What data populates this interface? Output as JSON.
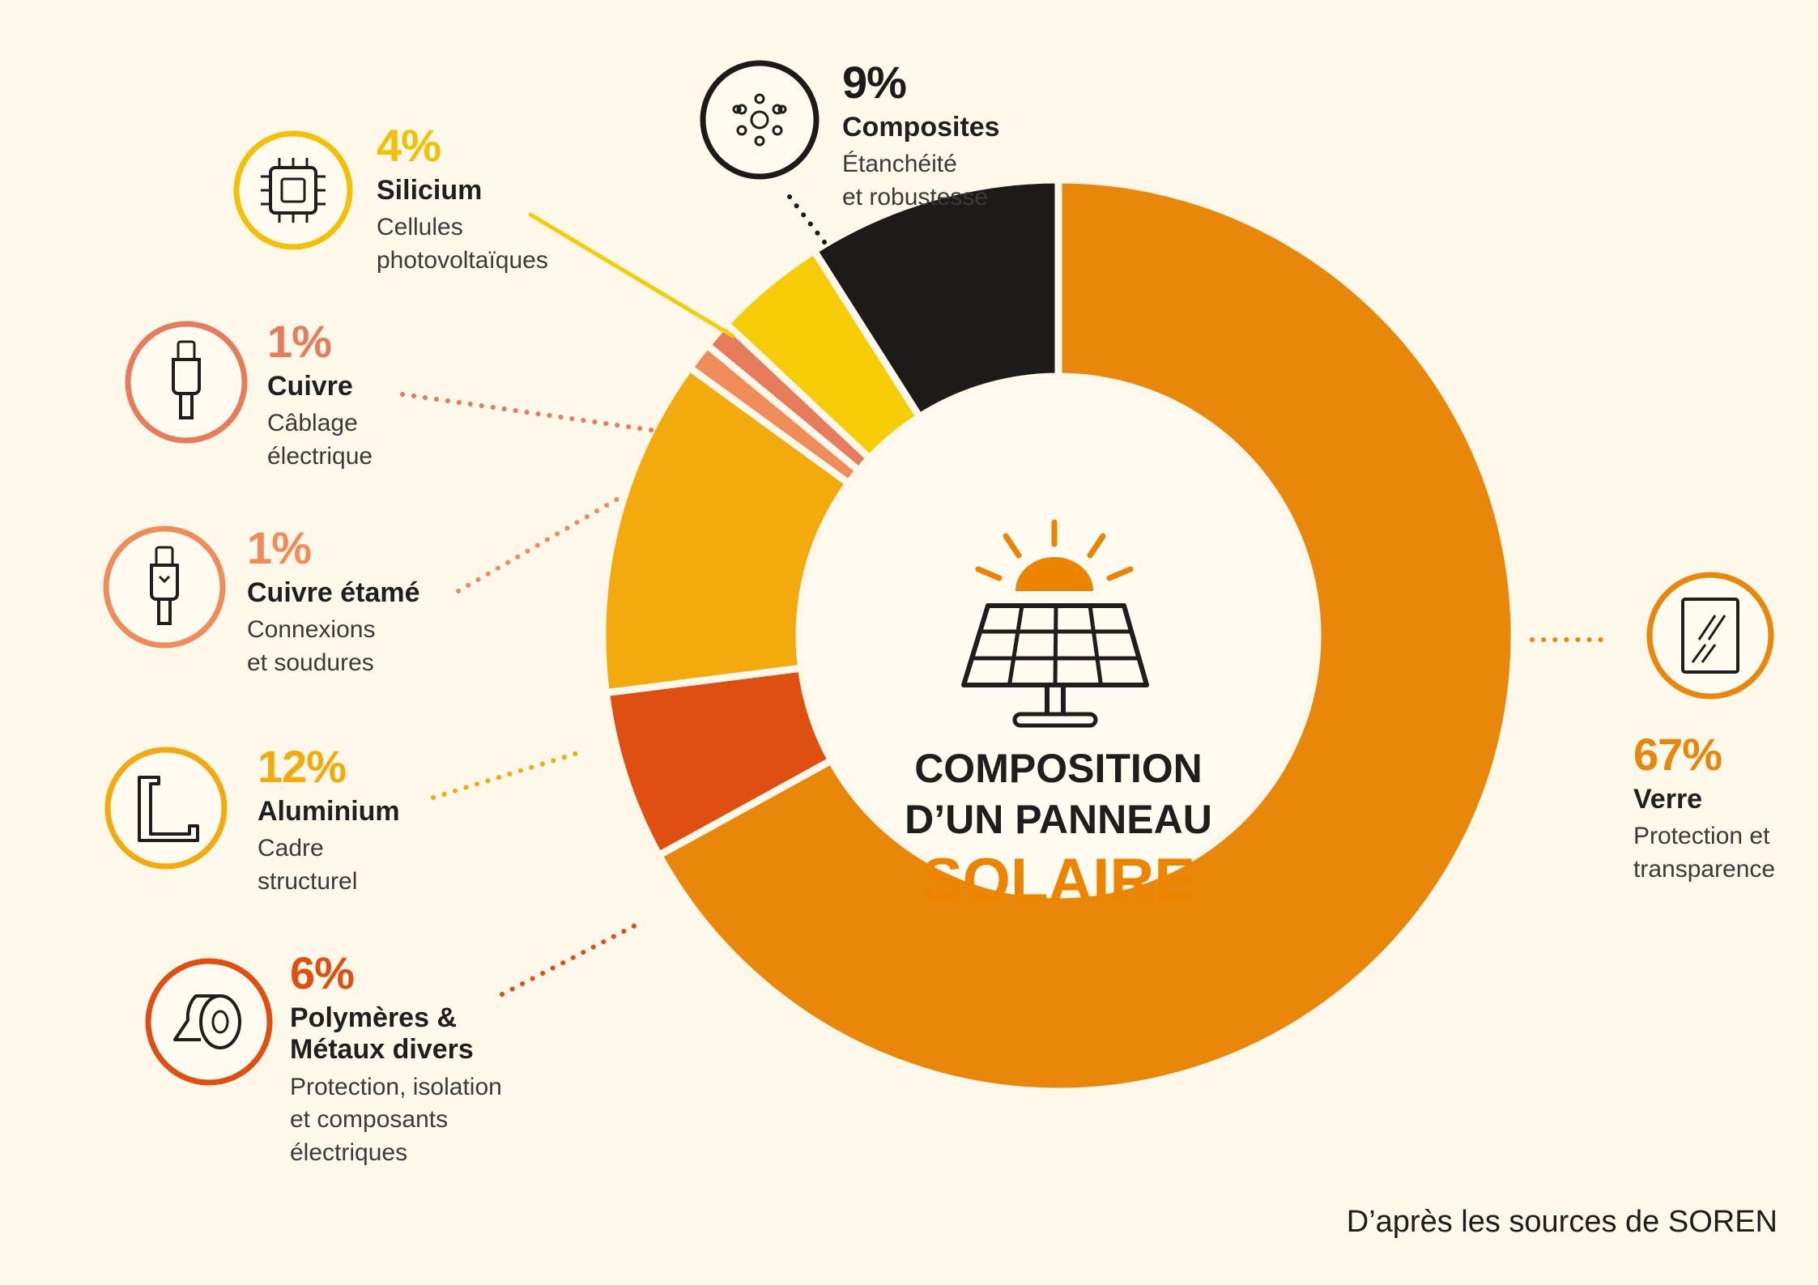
{
  "title": {
    "line1": "COMPOSITION",
    "line2": "D’UN PANNEAU",
    "accent": "SOLAIRE"
  },
  "source_note": "D’après les sources de SOREN",
  "chart_data": {
    "type": "pie",
    "donut": true,
    "categories": [
      "Verre",
      "Polymères & Métaux divers",
      "Aluminium",
      "Cuivre étamé",
      "Cuivre",
      "Silicium",
      "Composites"
    ],
    "values": [
      67,
      6,
      12,
      1,
      1,
      4,
      9
    ],
    "colors": [
      "#e9870a",
      "#e04f12",
      "#f2aa0d",
      "#f08c5a",
      "#e67c5b",
      "#f5cc05",
      "#1d1b19"
    ],
    "legend": "callouts"
  },
  "items": [
    {
      "key": "verre",
      "pct": "67%",
      "name": "Verre",
      "desc": [
        "Protection et",
        "transparence"
      ],
      "icon": "glass-pane-icon",
      "color": "#e9870a"
    },
    {
      "key": "polymeres",
      "pct": "6%",
      "name": [
        "Polymères &",
        "Métaux divers"
      ],
      "desc": [
        "Protection, isolation",
        "et composants",
        "électriques"
      ],
      "icon": "tape-roll-icon",
      "color": "#e04f12"
    },
    {
      "key": "aluminium",
      "pct": "12%",
      "name": "Aluminium",
      "desc": [
        "Cadre",
        "structurel"
      ],
      "icon": "frame-profile-icon",
      "color": "#f2aa0d"
    },
    {
      "key": "cuivre-etame",
      "pct": "1%",
      "name": "Cuivre étamé",
      "desc": [
        "Connexions",
        "et soudures"
      ],
      "icon": "tinned-cable-icon",
      "color": "#f08c5a"
    },
    {
      "key": "cuivre",
      "pct": "1%",
      "name": "Cuivre",
      "desc": [
        "Câblage",
        "électrique"
      ],
      "icon": "cable-icon",
      "color": "#e67c5b"
    },
    {
      "key": "silicium",
      "pct": "4%",
      "name": "Silicium",
      "desc": [
        "Cellules",
        "photovoltaïques"
      ],
      "icon": "chip-icon",
      "color": "#f5cc05"
    },
    {
      "key": "composites",
      "pct": "9%",
      "name": "Composites",
      "desc": [
        "Étanchéité",
        "et robustesse"
      ],
      "icon": "composite-dots-icon",
      "color": "#1d1b19"
    }
  ]
}
